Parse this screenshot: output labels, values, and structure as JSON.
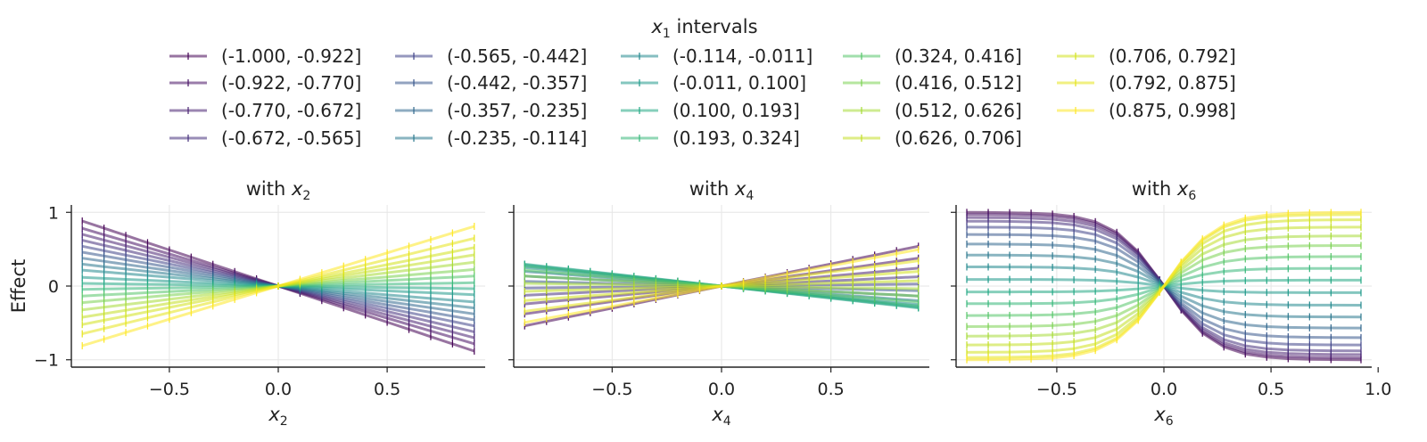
{
  "legend": {
    "title_var": "x",
    "title_sub": "1",
    "title_rest": " intervals",
    "labels": [
      "(-1.000, -0.922]",
      "(-0.922, -0.770]",
      "(-0.770, -0.672]",
      "(-0.672, -0.565]",
      "(-0.565, -0.442]",
      "(-0.442, -0.357]",
      "(-0.357, -0.235]",
      "(-0.235, -0.114]",
      "(-0.114, -0.011]",
      "(-0.011, 0.100]",
      "(0.100, 0.193]",
      "(0.193, 0.324]",
      "(0.324, 0.416]",
      "(0.416, 0.512]",
      "(0.512, 0.626]",
      "(0.626, 0.706]",
      "(0.706, 0.792]",
      "(0.792, 0.875]",
      "(0.875, 0.998]"
    ],
    "colors": [
      "#440154",
      "#481b6d",
      "#46327e",
      "#3f4788",
      "#365c8d",
      "#2e6e8e",
      "#277f8e",
      "#21918c",
      "#1fa187",
      "#2db27d",
      "#4ac16d",
      "#71cf57",
      "#a0da39",
      "#cae11f",
      "#fde725",
      "#fde725",
      "#fde725",
      "#fde725",
      "#fde725"
    ]
  },
  "chart_data": [
    {
      "type": "line",
      "title_prefix": "with ",
      "title_var": "x",
      "title_sub": "2",
      "xlabel_var": "x",
      "xlabel_sub": "2",
      "ylabel": "Effect",
      "xlim": [
        -0.95,
        0.95
      ],
      "ylim": [
        -1.1,
        1.1
      ],
      "xticks": [
        "−0.5",
        "0.0",
        "0.5"
      ],
      "xtick_values": [
        -0.5,
        0,
        0.5
      ],
      "yticks": [
        "−1",
        "0",
        "1"
      ],
      "ytick_values": [
        -1,
        0,
        1
      ],
      "grid": true,
      "x": [
        -0.9,
        -0.8,
        -0.7,
        -0.6,
        -0.5,
        -0.4,
        -0.3,
        -0.2,
        -0.1,
        0.0,
        0.1,
        0.2,
        0.3,
        0.4,
        0.5,
        0.6,
        0.7,
        0.8,
        0.9
      ],
      "series_slopes": [
        -0.98,
        -0.87,
        -0.78,
        -0.69,
        -0.6,
        -0.51,
        -0.42,
        -0.33,
        -0.24,
        -0.13,
        -0.04,
        0.05,
        0.15,
        0.25,
        0.36,
        0.47,
        0.58,
        0.72,
        0.9
      ]
    },
    {
      "type": "line",
      "title_prefix": "with ",
      "title_var": "x",
      "title_sub": "4",
      "xlabel_var": "x",
      "xlabel_sub": "4",
      "xlim": [
        -0.95,
        0.95
      ],
      "ylim": [
        -1.1,
        1.1
      ],
      "xticks": [
        "−0.5",
        "0.0",
        "0.5"
      ],
      "xtick_values": [
        -0.5,
        0,
        0.5
      ],
      "yticks": [
        "−1",
        "0",
        "1"
      ],
      "ytick_values": [
        -1,
        0,
        1
      ],
      "grid": true,
      "x": [
        -0.9,
        -0.8,
        -0.7,
        -0.6,
        -0.5,
        -0.4,
        -0.3,
        -0.2,
        -0.1,
        0.0,
        0.1,
        0.2,
        0.3,
        0.4,
        0.5,
        0.6,
        0.7,
        0.8,
        0.9
      ],
      "series_slopes": [
        0.6,
        0.42,
        0.27,
        0.14,
        0.03,
        -0.07,
        -0.15,
        -0.22,
        -0.28,
        -0.32,
        -0.33,
        -0.3,
        -0.24,
        -0.15,
        -0.04,
        0.08,
        0.22,
        0.38,
        0.55
      ]
    },
    {
      "type": "line",
      "title_prefix": "with ",
      "title_var": "x",
      "title_sub": "6",
      "xlabel_var": "x",
      "xlabel_sub": "6",
      "xlim": [
        -0.97,
        0.97
      ],
      "ylim": [
        -1.1,
        1.1
      ],
      "xticks": [
        "−0.5",
        "0.0",
        "0.5",
        "1.0"
      ],
      "xtick_values": [
        -0.5,
        0,
        0.5,
        1.0
      ],
      "yticks": [
        "−1",
        "0",
        "1"
      ],
      "ytick_values": [
        -1,
        0,
        1
      ],
      "grid": true,
      "x": [
        -0.92,
        -0.82,
        -0.72,
        -0.62,
        -0.52,
        -0.42,
        -0.32,
        -0.22,
        -0.12,
        -0.02,
        0.08,
        0.18,
        0.28,
        0.38,
        0.48,
        0.58,
        0.68,
        0.78,
        0.92
      ],
      "series_amplitudes": [
        -1.0,
        -0.97,
        -0.93,
        -0.88,
        -0.8,
        -0.7,
        -0.57,
        -0.42,
        -0.26,
        -0.09,
        0.08,
        0.24,
        0.4,
        0.55,
        0.68,
        0.8,
        0.9,
        0.97,
        1.0
      ]
    }
  ]
}
